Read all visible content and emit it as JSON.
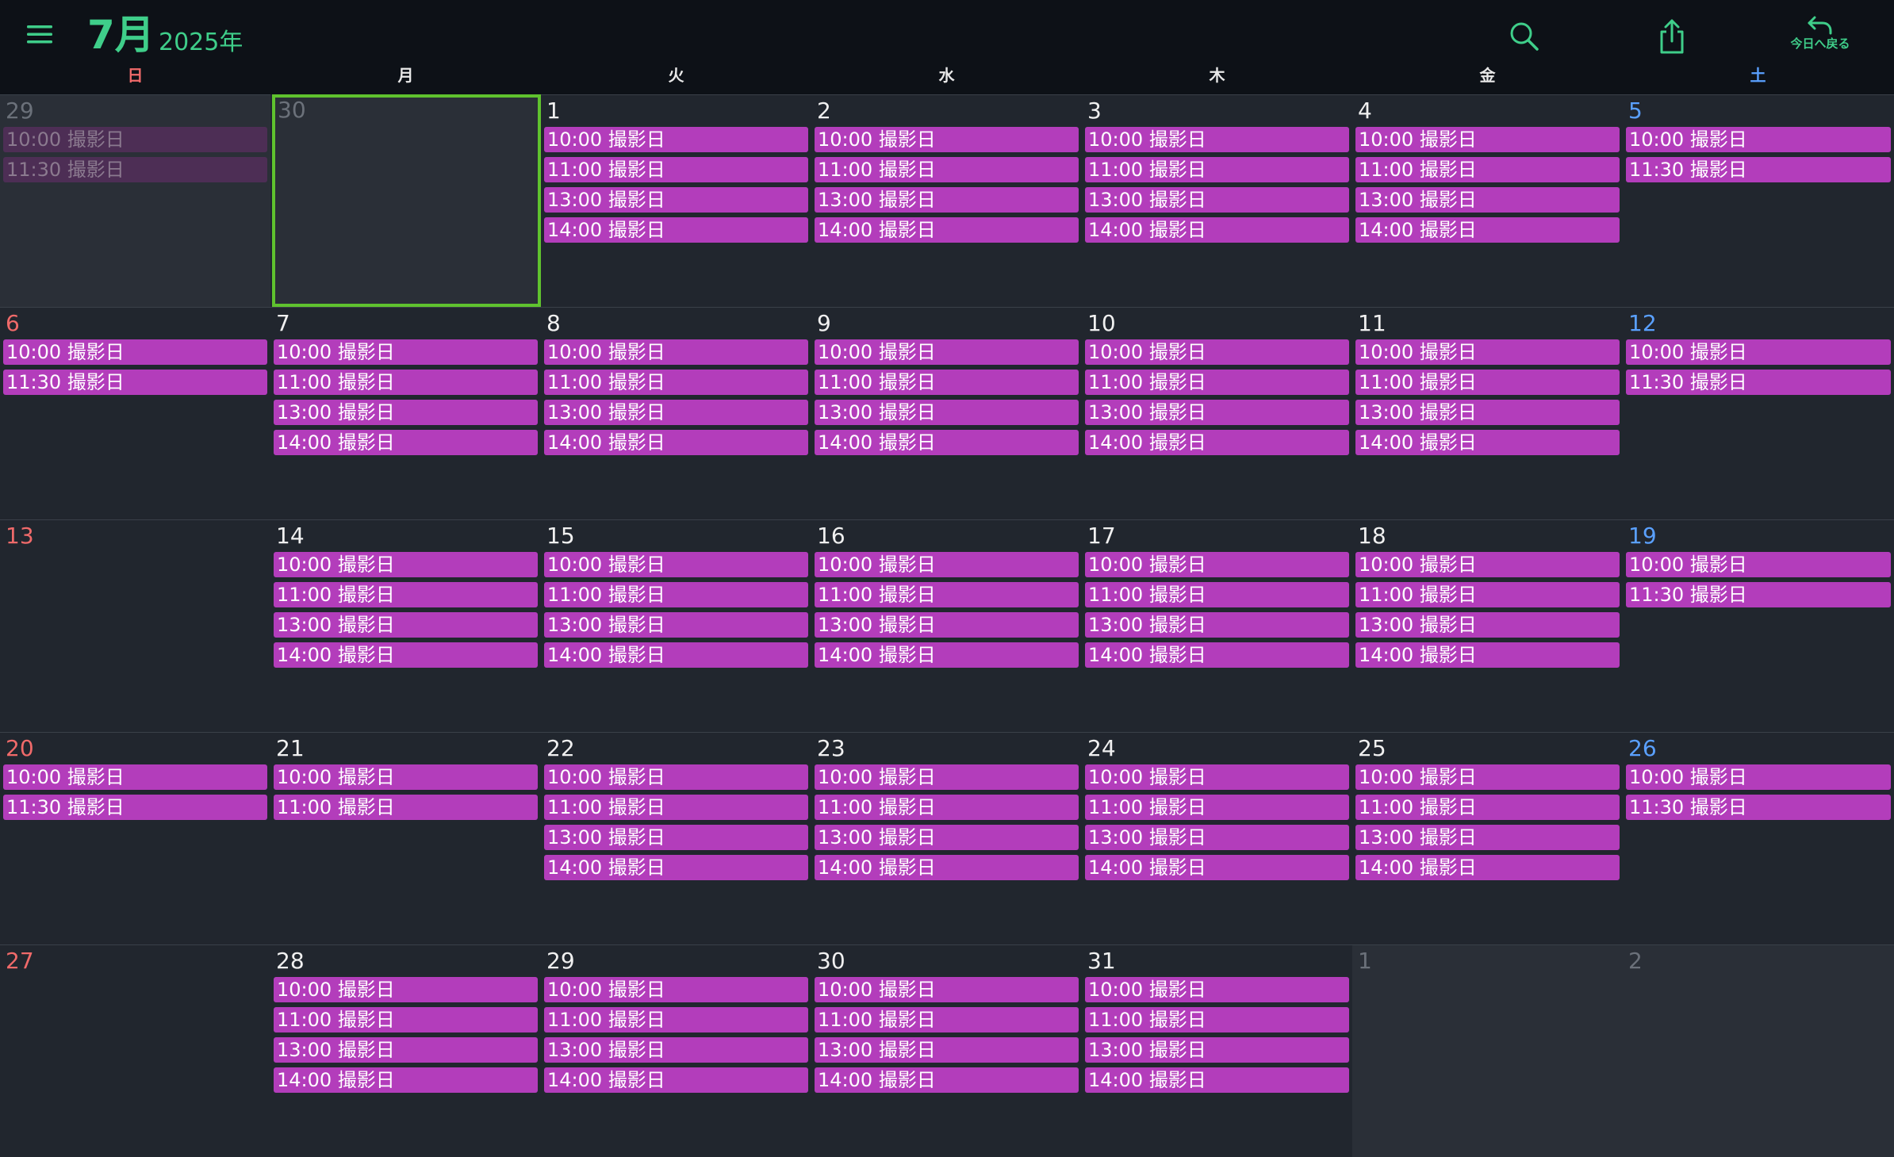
{
  "header": {
    "month": "7月",
    "year": "2025年",
    "today_button_label": "今日へ戻る"
  },
  "colors": {
    "accent": "#3fce8a",
    "event": "#b33dbb",
    "today_outline": "#5fc22e",
    "sunday": "#f06a6a",
    "saturday": "#5aa0ff"
  },
  "weekdays": [
    "日",
    "月",
    "火",
    "水",
    "木",
    "金",
    "土"
  ],
  "weeks": [
    [
      {
        "day": "29",
        "other_month": true,
        "events": [
          "10:00 撮影日",
          "11:30 撮影日"
        ]
      },
      {
        "day": "30",
        "other_month": true,
        "today": true,
        "events": []
      },
      {
        "day": "1",
        "events": [
          "10:00 撮影日",
          "11:00 撮影日",
          "13:00 撮影日",
          "14:00 撮影日"
        ]
      },
      {
        "day": "2",
        "events": [
          "10:00 撮影日",
          "11:00 撮影日",
          "13:00 撮影日",
          "14:00 撮影日"
        ]
      },
      {
        "day": "3",
        "events": [
          "10:00 撮影日",
          "11:00 撮影日",
          "13:00 撮影日",
          "14:00 撮影日"
        ]
      },
      {
        "day": "4",
        "events": [
          "10:00 撮影日",
          "11:00 撮影日",
          "13:00 撮影日",
          "14:00 撮影日"
        ]
      },
      {
        "day": "5",
        "events": [
          "10:00 撮影日",
          "11:30 撮影日"
        ]
      }
    ],
    [
      {
        "day": "6",
        "events": [
          "10:00 撮影日",
          "11:30 撮影日"
        ]
      },
      {
        "day": "7",
        "events": [
          "10:00 撮影日",
          "11:00 撮影日",
          "13:00 撮影日",
          "14:00 撮影日"
        ]
      },
      {
        "day": "8",
        "events": [
          "10:00 撮影日",
          "11:00 撮影日",
          "13:00 撮影日",
          "14:00 撮影日"
        ]
      },
      {
        "day": "9",
        "events": [
          "10:00 撮影日",
          "11:00 撮影日",
          "13:00 撮影日",
          "14:00 撮影日"
        ]
      },
      {
        "day": "10",
        "events": [
          "10:00 撮影日",
          "11:00 撮影日",
          "13:00 撮影日",
          "14:00 撮影日"
        ]
      },
      {
        "day": "11",
        "events": [
          "10:00 撮影日",
          "11:00 撮影日",
          "13:00 撮影日",
          "14:00 撮影日"
        ]
      },
      {
        "day": "12",
        "events": [
          "10:00 撮影日",
          "11:30 撮影日"
        ]
      }
    ],
    [
      {
        "day": "13",
        "events": []
      },
      {
        "day": "14",
        "events": [
          "10:00 撮影日",
          "11:00 撮影日",
          "13:00 撮影日",
          "14:00 撮影日"
        ]
      },
      {
        "day": "15",
        "events": [
          "10:00 撮影日",
          "11:00 撮影日",
          "13:00 撮影日",
          "14:00 撮影日"
        ]
      },
      {
        "day": "16",
        "events": [
          "10:00 撮影日",
          "11:00 撮影日",
          "13:00 撮影日",
          "14:00 撮影日"
        ]
      },
      {
        "day": "17",
        "events": [
          "10:00 撮影日",
          "11:00 撮影日",
          "13:00 撮影日",
          "14:00 撮影日"
        ]
      },
      {
        "day": "18",
        "events": [
          "10:00 撮影日",
          "11:00 撮影日",
          "13:00 撮影日",
          "14:00 撮影日"
        ]
      },
      {
        "day": "19",
        "events": [
          "10:00 撮影日",
          "11:30 撮影日"
        ]
      }
    ],
    [
      {
        "day": "20",
        "events": [
          "10:00 撮影日",
          "11:30 撮影日"
        ]
      },
      {
        "day": "21",
        "events": [
          "10:00 撮影日",
          "11:00 撮影日"
        ]
      },
      {
        "day": "22",
        "events": [
          "10:00 撮影日",
          "11:00 撮影日",
          "13:00 撮影日",
          "14:00 撮影日"
        ]
      },
      {
        "day": "23",
        "events": [
          "10:00 撮影日",
          "11:00 撮影日",
          "13:00 撮影日",
          "14:00 撮影日"
        ]
      },
      {
        "day": "24",
        "events": [
          "10:00 撮影日",
          "11:00 撮影日",
          "13:00 撮影日",
          "14:00 撮影日"
        ]
      },
      {
        "day": "25",
        "events": [
          "10:00 撮影日",
          "11:00 撮影日",
          "13:00 撮影日",
          "14:00 撮影日"
        ]
      },
      {
        "day": "26",
        "events": [
          "10:00 撮影日",
          "11:30 撮影日"
        ]
      }
    ],
    [
      {
        "day": "27",
        "events": []
      },
      {
        "day": "28",
        "events": [
          "10:00 撮影日",
          "11:00 撮影日",
          "13:00 撮影日",
          "14:00 撮影日"
        ]
      },
      {
        "day": "29",
        "events": [
          "10:00 撮影日",
          "11:00 撮影日",
          "13:00 撮影日",
          "14:00 撮影日"
        ]
      },
      {
        "day": "30",
        "events": [
          "10:00 撮影日",
          "11:00 撮影日",
          "13:00 撮影日",
          "14:00 撮影日"
        ]
      },
      {
        "day": "31",
        "events": [
          "10:00 撮影日",
          "11:00 撮影日",
          "13:00 撮影日",
          "14:00 撮影日"
        ]
      },
      {
        "day": "1",
        "other_month": true,
        "events": []
      },
      {
        "day": "2",
        "other_month": true,
        "events": []
      }
    ]
  ]
}
